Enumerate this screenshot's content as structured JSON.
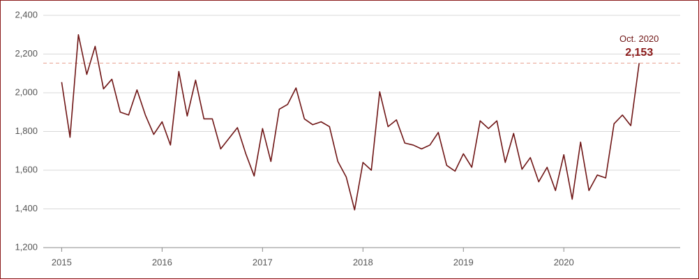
{
  "chart_data": {
    "type": "line",
    "x": [
      0,
      1,
      2,
      3,
      4,
      5,
      6,
      7,
      8,
      9,
      10,
      11,
      12,
      13,
      14,
      15,
      16,
      17,
      18,
      19,
      20,
      21,
      22,
      23,
      24,
      25,
      26,
      27,
      28,
      29,
      30,
      31,
      32,
      33,
      34,
      35,
      36,
      37,
      38,
      39,
      40,
      41,
      42,
      43,
      44,
      45,
      46,
      47,
      48,
      49,
      50,
      51,
      52,
      53,
      54,
      55,
      56,
      57,
      58,
      59,
      60,
      61,
      62,
      63,
      64,
      65,
      66,
      67,
      68,
      69
    ],
    "series": [
      {
        "color": "#6e1414",
        "values": [
          2055,
          1770,
          2300,
          2095,
          2240,
          2020,
          2070,
          1900,
          1885,
          2015,
          1885,
          1785,
          1850,
          1730,
          2110,
          1880,
          2065,
          1865,
          1865,
          1710,
          1765,
          1820,
          1685,
          1570,
          1815,
          1645,
          1915,
          1940,
          2025,
          1865,
          1835,
          1850,
          1825,
          1645,
          1565,
          1395,
          1640,
          1600,
          2005,
          1825,
          1860,
          1740,
          1730,
          1710,
          1730,
          1795,
          1625,
          1595,
          1685,
          1615,
          1855,
          1815,
          1855,
          1640,
          1790,
          1605,
          1665,
          1540,
          1615,
          1495,
          1680,
          1450,
          1745,
          1495,
          1575,
          1560,
          1840,
          1885,
          1830,
          2153
        ]
      }
    ],
    "xlim": [
      -2.2,
      73.9
    ],
    "xticks": [
      {
        "value": 0,
        "label": "2015"
      },
      {
        "value": 12,
        "label": "2016"
      },
      {
        "value": 24,
        "label": "2017"
      },
      {
        "value": 36,
        "label": "2018"
      },
      {
        "value": 48,
        "label": "2019"
      },
      {
        "value": 60,
        "label": "2020"
      }
    ],
    "ylim": [
      1200,
      2400
    ],
    "yticks": [
      {
        "value": 1200,
        "label": "1,200"
      },
      {
        "value": 1400,
        "label": "1,400"
      },
      {
        "value": 1600,
        "label": "1,600"
      },
      {
        "value": 1800,
        "label": "1,800"
      },
      {
        "value": 2000,
        "label": "2,000"
      },
      {
        "value": 2200,
        "label": "2,200"
      },
      {
        "value": 2400,
        "label": "2,400"
      }
    ],
    "grid": true,
    "annotation": {
      "label": "Oct. 2020",
      "value_label": "2,153",
      "reference_line_color": "#e8a090"
    }
  }
}
